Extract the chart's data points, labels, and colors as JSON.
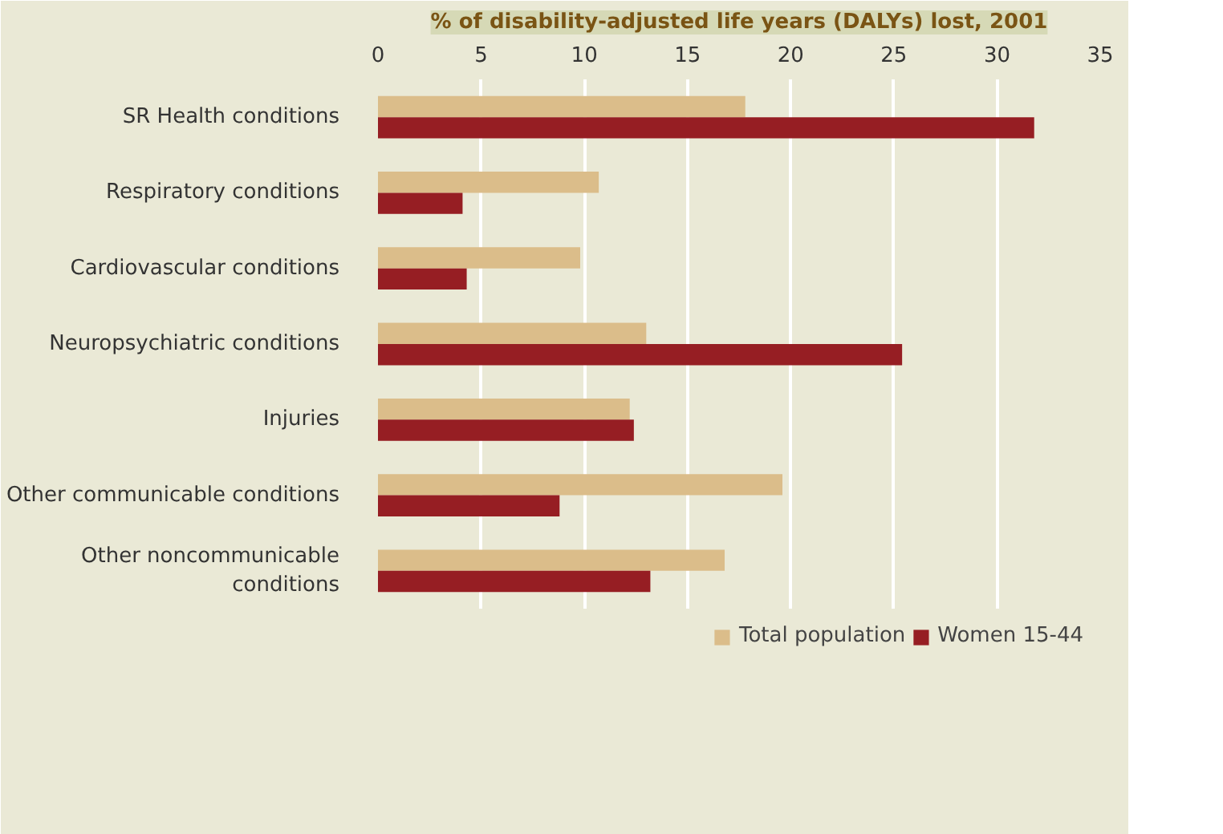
{
  "chart_data": {
    "type": "bar",
    "orientation": "horizontal",
    "title": "% of disability-adjusted life years (DALYs) lost, 2001",
    "categories": [
      "SR Health conditions",
      "Respiratory conditions",
      "Cardiovascular conditions",
      "Neuropsychiatric conditions",
      "Injuries",
      "Other communicable conditions",
      "Other noncommunicable\nconditions"
    ],
    "series": [
      {
        "name": "Total population",
        "color": "#dbbd8a",
        "values": [
          17.8,
          10.7,
          9.8,
          13.0,
          12.2,
          19.6,
          16.8
        ]
      },
      {
        "name": "Women 15-44",
        "color": "#961e23",
        "values": [
          31.8,
          4.1,
          4.3,
          25.4,
          12.4,
          8.8,
          13.2
        ]
      }
    ],
    "xlim": [
      0,
      35
    ],
    "xticks": [
      0,
      5,
      10,
      15,
      20,
      25,
      30,
      35
    ],
    "grid": "x",
    "legend": "bottom"
  }
}
